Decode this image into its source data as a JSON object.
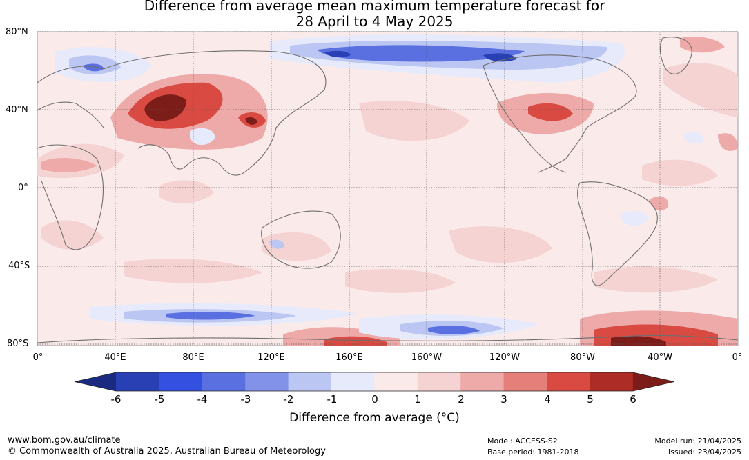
{
  "title": {
    "line1": "Difference from average mean maximum temperature forecast for",
    "line2": "28 April to 4 May 2025"
  },
  "axes": {
    "lat_labels": [
      "80°N",
      "40°N",
      "0°",
      "40°S",
      "80°S"
    ],
    "lon_labels": [
      "0°",
      "40°E",
      "80°E",
      "120°E",
      "160°E",
      "160°W",
      "120°W",
      "80°W",
      "40°W",
      "0°"
    ]
  },
  "colorbar": {
    "title": "Difference from average (°C)",
    "tick_labels": [
      "-6",
      "-5",
      "-4",
      "-3",
      "-2",
      "-1",
      "0",
      "1",
      "2",
      "3",
      "4",
      "5",
      "6"
    ],
    "colors": [
      "#1a2a80",
      "#2840b4",
      "#3350e0",
      "#5a70e0",
      "#8292e8",
      "#bcc6f2",
      "#e6eafa",
      "#fbeaea",
      "#f5d3d3",
      "#edaaa8",
      "#e57f7a",
      "#d84a42",
      "#ad2c26",
      "#7d1d1a"
    ]
  },
  "footer": {
    "website": "www.bom.gov.au/climate",
    "copyright": "© Commonwealth of Australia 2025, Australian Bureau of Meteorology",
    "model": "Model: ACCESS-S2",
    "base_period": "Base period: 1981-2018",
    "model_run": "Model run: 21/04/2025",
    "issued": "Issued: 23/04/2025"
  }
}
